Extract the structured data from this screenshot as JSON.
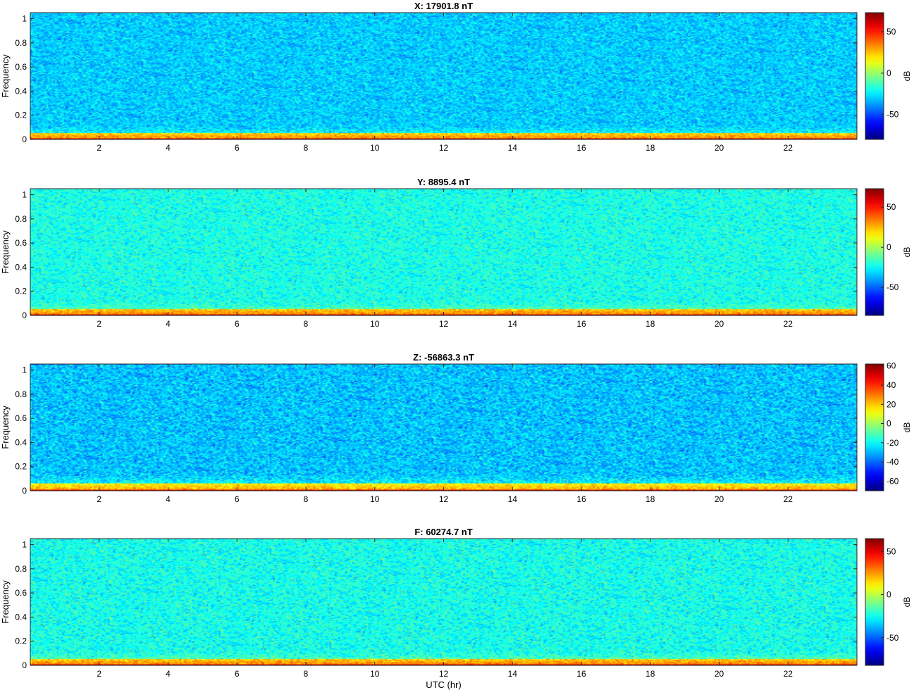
{
  "chart_data": [
    {
      "type": "heatmap",
      "title": "X: 17901.8 nT",
      "xlabel": "",
      "ylabel": "Frequency",
      "xlim": [
        0,
        24
      ],
      "ylim": [
        0,
        1.05
      ],
      "x_ticks": [
        2,
        4,
        6,
        8,
        10,
        12,
        14,
        16,
        18,
        20,
        22
      ],
      "y_ticks": [
        0,
        0.2,
        0.4,
        0.6,
        0.8,
        1
      ],
      "colorbar": {
        "label": "dB",
        "range": [
          -80,
          73
        ],
        "ticks": [
          50,
          0,
          -50
        ],
        "colormap": "jet"
      },
      "field": {
        "background_db": -30,
        "low_freq_band_db": 30,
        "low_freq_cutoff": 0.05,
        "dc_db": 70
      }
    },
    {
      "type": "heatmap",
      "title": "Y: 8895.4 nT",
      "xlabel": "",
      "ylabel": "Frequency",
      "xlim": [
        0,
        24
      ],
      "ylim": [
        0,
        1.05
      ],
      "x_ticks": [
        2,
        4,
        6,
        8,
        10,
        12,
        14,
        16,
        18,
        20,
        22
      ],
      "y_ticks": [
        0,
        0.2,
        0.4,
        0.6,
        0.8,
        1
      ],
      "colorbar": {
        "label": "dB",
        "range": [
          -85,
          73
        ],
        "ticks": [
          50,
          0,
          -50
        ],
        "colormap": "jet"
      },
      "field": {
        "background_db": -22,
        "low_freq_band_db": 30,
        "low_freq_cutoff": 0.05,
        "dc_db": 70
      }
    },
    {
      "type": "heatmap",
      "title": "Z: -56863.3 nT",
      "xlabel": "",
      "ylabel": "Frequency",
      "xlim": [
        0,
        24
      ],
      "ylim": [
        0,
        1.05
      ],
      "x_ticks": [
        2,
        4,
        6,
        8,
        10,
        12,
        14,
        16,
        18,
        20,
        22
      ],
      "y_ticks": [
        0,
        0.2,
        0.4,
        0.6,
        0.8,
        1
      ],
      "colorbar": {
        "label": "dB",
        "range": [
          -70,
          62
        ],
        "ticks": [
          60,
          40,
          20,
          0,
          -20,
          -40,
          -60
        ],
        "colormap": "jet"
      },
      "field": {
        "background_db": -28,
        "low_freq_band_db": 20,
        "low_freq_cutoff": 0.06,
        "dc_db": 55
      }
    },
    {
      "type": "heatmap",
      "title": "F: 60274.7 nT",
      "xlabel": "UTC (hr)",
      "ylabel": "Frequency",
      "xlim": [
        0,
        24
      ],
      "ylim": [
        0,
        1.05
      ],
      "x_ticks": [
        2,
        4,
        6,
        8,
        10,
        12,
        14,
        16,
        18,
        20,
        22
      ],
      "y_ticks": [
        0,
        0.2,
        0.4,
        0.6,
        0.8,
        1
      ],
      "colorbar": {
        "label": "dB",
        "range": [
          -82,
          65
        ],
        "ticks": [
          50,
          0,
          -50
        ],
        "colormap": "jet"
      },
      "field": {
        "background_db": -24,
        "low_freq_band_db": 25,
        "low_freq_cutoff": 0.05,
        "dc_db": 60
      }
    }
  ]
}
